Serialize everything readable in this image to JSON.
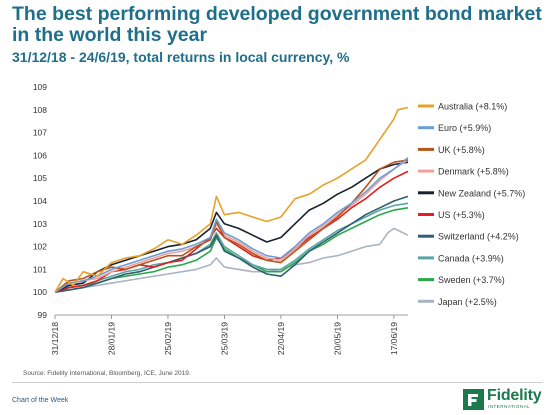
{
  "header": {
    "title": "The best performing developed government bond market in the world this year",
    "subtitle": "31/12/18 - 24/6/19, total returns in local currency, %"
  },
  "chart_data": {
    "type": "line",
    "ylim": [
      99,
      109
    ],
    "y_ticks": [
      "99",
      "100",
      "101",
      "102",
      "103",
      "104",
      "105",
      "106",
      "107",
      "108",
      "109"
    ],
    "x_ticks": [
      {
        "label": "31/12/18",
        "day": 0
      },
      {
        "label": "28/01/19",
        "day": 28
      },
      {
        "label": "25/02/19",
        "day": 56
      },
      {
        "label": "25/03/19",
        "day": 84
      },
      {
        "label": "22/04/19",
        "day": 112
      },
      {
        "label": "20/05/19",
        "day": 140
      },
      {
        "label": "17/06/19",
        "day": 168
      }
    ],
    "x_range_days": [
      0,
      175
    ],
    "grid": false,
    "legend_position": "right",
    "series": [
      {
        "name": "Australia (+8.1%)",
        "color": "#e8a12a",
        "points": [
          [
            0,
            100
          ],
          [
            4,
            100.6
          ],
          [
            9,
            100.3
          ],
          [
            14,
            100.9
          ],
          [
            21,
            100.7
          ],
          [
            28,
            101.3
          ],
          [
            35,
            101.5
          ],
          [
            42,
            101.6
          ],
          [
            49,
            101.9
          ],
          [
            56,
            102.3
          ],
          [
            63,
            102.1
          ],
          [
            70,
            102.5
          ],
          [
            77,
            103.0
          ],
          [
            80,
            104.2
          ],
          [
            84,
            103.4
          ],
          [
            91,
            103.5
          ],
          [
            98,
            103.3
          ],
          [
            105,
            103.1
          ],
          [
            112,
            103.3
          ],
          [
            119,
            104.1
          ],
          [
            126,
            104.3
          ],
          [
            133,
            104.7
          ],
          [
            140,
            105.0
          ],
          [
            147,
            105.4
          ],
          [
            154,
            105.8
          ],
          [
            161,
            106.7
          ],
          [
            165,
            107.2
          ],
          [
            168,
            107.6
          ],
          [
            170,
            108.0
          ],
          [
            175,
            108.1
          ]
        ]
      },
      {
        "name": "Euro (+5.9%)",
        "color": "#6b9ed4",
        "points": [
          [
            0,
            100
          ],
          [
            7,
            100.4
          ],
          [
            14,
            100.5
          ],
          [
            21,
            100.7
          ],
          [
            28,
            101.0
          ],
          [
            35,
            101.2
          ],
          [
            42,
            101.4
          ],
          [
            49,
            101.6
          ],
          [
            56,
            101.8
          ],
          [
            63,
            101.9
          ],
          [
            70,
            102.1
          ],
          [
            77,
            102.4
          ],
          [
            80,
            103.2
          ],
          [
            84,
            102.6
          ],
          [
            91,
            102.3
          ],
          [
            98,
            101.9
          ],
          [
            105,
            101.6
          ],
          [
            112,
            101.5
          ],
          [
            119,
            102.0
          ],
          [
            126,
            102.6
          ],
          [
            133,
            103.0
          ],
          [
            140,
            103.5
          ],
          [
            147,
            103.9
          ],
          [
            154,
            104.4
          ],
          [
            161,
            105.0
          ],
          [
            168,
            105.4
          ],
          [
            175,
            105.9
          ]
        ]
      },
      {
        "name": "UK (+5.8%)",
        "color": "#b8541e",
        "points": [
          [
            0,
            100
          ],
          [
            7,
            100.5
          ],
          [
            14,
            100.6
          ],
          [
            21,
            100.9
          ],
          [
            28,
            101.1
          ],
          [
            35,
            101.0
          ],
          [
            42,
            101.2
          ],
          [
            49,
            101.4
          ],
          [
            56,
            101.6
          ],
          [
            63,
            101.6
          ],
          [
            70,
            102.0
          ],
          [
            77,
            102.3
          ],
          [
            80,
            103.1
          ],
          [
            84,
            102.4
          ],
          [
            91,
            102.1
          ],
          [
            98,
            101.7
          ],
          [
            105,
            101.4
          ],
          [
            112,
            101.3
          ],
          [
            119,
            101.8
          ],
          [
            126,
            102.3
          ],
          [
            133,
            102.8
          ],
          [
            140,
            103.3
          ],
          [
            147,
            103.9
          ],
          [
            154,
            104.6
          ],
          [
            161,
            105.4
          ],
          [
            168,
            105.7
          ],
          [
            175,
            105.8
          ]
        ]
      },
      {
        "name": "Denmark (+5.8%)",
        "color": "#f0a0a0",
        "points": [
          [
            0,
            100
          ],
          [
            7,
            100.4
          ],
          [
            14,
            100.5
          ],
          [
            21,
            100.6
          ],
          [
            28,
            100.9
          ],
          [
            35,
            101.1
          ],
          [
            42,
            101.3
          ],
          [
            49,
            101.5
          ],
          [
            56,
            101.7
          ],
          [
            63,
            101.8
          ],
          [
            70,
            102.0
          ],
          [
            77,
            102.3
          ],
          [
            80,
            103.0
          ],
          [
            84,
            102.5
          ],
          [
            91,
            102.2
          ],
          [
            98,
            101.8
          ],
          [
            105,
            101.5
          ],
          [
            112,
            101.4
          ],
          [
            119,
            101.9
          ],
          [
            126,
            102.5
          ],
          [
            133,
            102.9
          ],
          [
            140,
            103.4
          ],
          [
            147,
            103.8
          ],
          [
            154,
            104.3
          ],
          [
            161,
            104.9
          ],
          [
            168,
            105.4
          ],
          [
            175,
            105.8
          ]
        ]
      },
      {
        "name": "New Zealand (+5.7%)",
        "color": "#16222e",
        "points": [
          [
            0,
            100
          ],
          [
            7,
            100.3
          ],
          [
            14,
            100.4
          ],
          [
            21,
            100.9
          ],
          [
            28,
            101.2
          ],
          [
            35,
            101.4
          ],
          [
            42,
            101.6
          ],
          [
            49,
            101.8
          ],
          [
            56,
            102.0
          ],
          [
            63,
            102.1
          ],
          [
            70,
            102.3
          ],
          [
            77,
            102.8
          ],
          [
            80,
            103.5
          ],
          [
            84,
            103.0
          ],
          [
            91,
            102.8
          ],
          [
            98,
            102.5
          ],
          [
            105,
            102.2
          ],
          [
            112,
            102.4
          ],
          [
            119,
            103.0
          ],
          [
            126,
            103.6
          ],
          [
            133,
            103.9
          ],
          [
            140,
            104.3
          ],
          [
            147,
            104.6
          ],
          [
            154,
            105.0
          ],
          [
            161,
            105.4
          ],
          [
            168,
            105.6
          ],
          [
            175,
            105.7
          ]
        ]
      },
      {
        "name": "US (+5.3%)",
        "color": "#e02020",
        "points": [
          [
            0,
            100
          ],
          [
            7,
            100.2
          ],
          [
            14,
            100.3
          ],
          [
            21,
            100.5
          ],
          [
            28,
            100.9
          ],
          [
            35,
            101.0
          ],
          [
            42,
            101.2
          ],
          [
            49,
            101.1
          ],
          [
            56,
            101.3
          ],
          [
            63,
            101.4
          ],
          [
            70,
            101.9
          ],
          [
            77,
            102.4
          ],
          [
            80,
            102.8
          ],
          [
            84,
            102.4
          ],
          [
            91,
            102.0
          ],
          [
            98,
            101.6
          ],
          [
            105,
            101.4
          ],
          [
            112,
            101.5
          ],
          [
            119,
            101.9
          ],
          [
            126,
            102.4
          ],
          [
            133,
            102.8
          ],
          [
            140,
            103.2
          ],
          [
            147,
            103.7
          ],
          [
            154,
            104.1
          ],
          [
            161,
            104.6
          ],
          [
            168,
            105.0
          ],
          [
            175,
            105.3
          ]
        ]
      },
      {
        "name": "Switzerland (+4.2%)",
        "color": "#2f5f70",
        "points": [
          [
            0,
            100
          ],
          [
            7,
            100.1
          ],
          [
            14,
            100.2
          ],
          [
            21,
            100.4
          ],
          [
            28,
            100.6
          ],
          [
            35,
            100.8
          ],
          [
            42,
            100.9
          ],
          [
            49,
            101.1
          ],
          [
            56,
            101.3
          ],
          [
            63,
            101.5
          ],
          [
            70,
            101.7
          ],
          [
            77,
            102.0
          ],
          [
            80,
            102.5
          ],
          [
            84,
            101.8
          ],
          [
            91,
            101.5
          ],
          [
            98,
            101.1
          ],
          [
            105,
            100.8
          ],
          [
            112,
            100.7
          ],
          [
            119,
            101.2
          ],
          [
            126,
            101.8
          ],
          [
            133,
            102.2
          ],
          [
            140,
            102.6
          ],
          [
            147,
            103.0
          ],
          [
            154,
            103.4
          ],
          [
            161,
            103.7
          ],
          [
            168,
            104.0
          ],
          [
            175,
            104.2
          ]
        ]
      },
      {
        "name": "Canada (+3.9%)",
        "color": "#5aa6a6",
        "points": [
          [
            0,
            100
          ],
          [
            7,
            100.2
          ],
          [
            14,
            100.3
          ],
          [
            21,
            100.5
          ],
          [
            28,
            100.7
          ],
          [
            35,
            100.9
          ],
          [
            42,
            101.0
          ],
          [
            49,
            101.2
          ],
          [
            56,
            101.3
          ],
          [
            63,
            101.5
          ],
          [
            70,
            101.7
          ],
          [
            77,
            102.1
          ],
          [
            80,
            102.6
          ],
          [
            84,
            102.0
          ],
          [
            91,
            101.6
          ],
          [
            98,
            101.2
          ],
          [
            105,
            101.0
          ],
          [
            112,
            101.0
          ],
          [
            119,
            101.4
          ],
          [
            126,
            101.9
          ],
          [
            133,
            102.3
          ],
          [
            140,
            102.7
          ],
          [
            147,
            103.0
          ],
          [
            154,
            103.3
          ],
          [
            161,
            103.6
          ],
          [
            168,
            103.8
          ],
          [
            175,
            103.9
          ]
        ]
      },
      {
        "name": "Sweden (+3.7%)",
        "color": "#2aa84a",
        "points": [
          [
            0,
            100
          ],
          [
            7,
            100.2
          ],
          [
            14,
            100.3
          ],
          [
            21,
            100.4
          ],
          [
            28,
            100.6
          ],
          [
            35,
            100.7
          ],
          [
            42,
            100.8
          ],
          [
            49,
            100.9
          ],
          [
            56,
            101.1
          ],
          [
            63,
            101.2
          ],
          [
            70,
            101.4
          ],
          [
            77,
            101.8
          ],
          [
            80,
            102.4
          ],
          [
            84,
            101.9
          ],
          [
            91,
            101.5
          ],
          [
            98,
            101.2
          ],
          [
            105,
            100.9
          ],
          [
            112,
            100.9
          ],
          [
            119,
            101.3
          ],
          [
            126,
            101.8
          ],
          [
            133,
            102.1
          ],
          [
            140,
            102.5
          ],
          [
            147,
            102.8
          ],
          [
            154,
            103.1
          ],
          [
            161,
            103.4
          ],
          [
            168,
            103.6
          ],
          [
            175,
            103.7
          ]
        ]
      },
      {
        "name": "Japan (+2.5%)",
        "color": "#a9b4c4",
        "points": [
          [
            0,
            100
          ],
          [
            7,
            100.1
          ],
          [
            14,
            100.2
          ],
          [
            21,
            100.3
          ],
          [
            28,
            100.4
          ],
          [
            35,
            100.5
          ],
          [
            42,
            100.6
          ],
          [
            49,
            100.7
          ],
          [
            56,
            100.8
          ],
          [
            63,
            100.9
          ],
          [
            70,
            101.0
          ],
          [
            77,
            101.2
          ],
          [
            80,
            101.5
          ],
          [
            84,
            101.1
          ],
          [
            91,
            101.0
          ],
          [
            98,
            100.9
          ],
          [
            105,
            100.9
          ],
          [
            112,
            101.0
          ],
          [
            119,
            101.2
          ],
          [
            126,
            101.3
          ],
          [
            133,
            101.5
          ],
          [
            140,
            101.6
          ],
          [
            147,
            101.8
          ],
          [
            154,
            102.0
          ],
          [
            161,
            102.1
          ],
          [
            165,
            102.6
          ],
          [
            168,
            102.8
          ],
          [
            175,
            102.5
          ]
        ]
      }
    ]
  },
  "source": "Source: Fidelity International, Bloomberg, ICE, June 2019.",
  "footer": {
    "left": "Chart of the Week",
    "brand": "Fidelity",
    "brand_sub": "INTERNATIONAL",
    "brand_color": "#1a7a4c"
  }
}
